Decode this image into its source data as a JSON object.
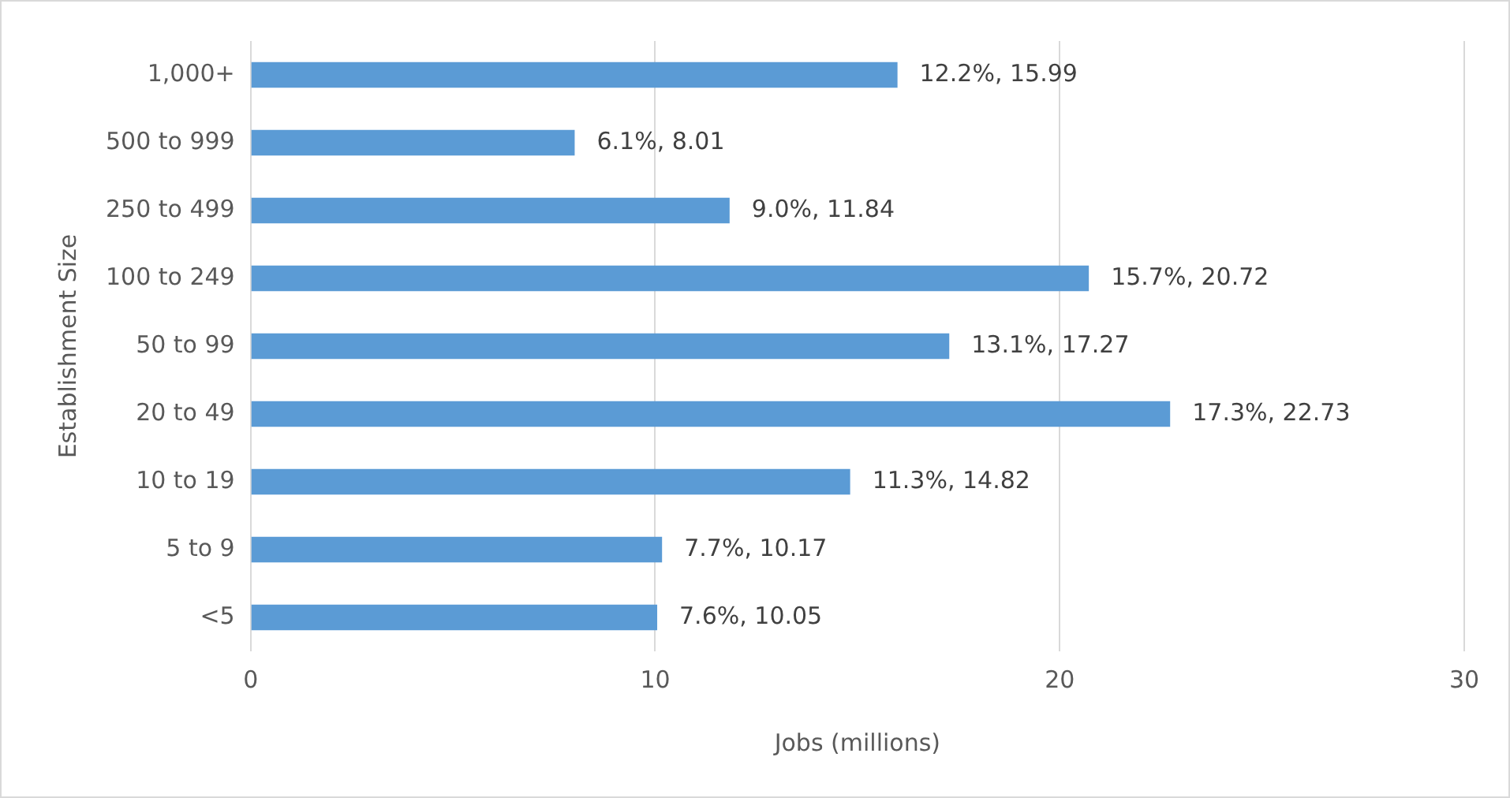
{
  "chart_data": {
    "type": "bar",
    "orientation": "horizontal",
    "xlabel": "Jobs (millions)",
    "ylabel": "Establishment Size",
    "categories": [
      "1,000+",
      "500 to 999",
      "250 to 499",
      "100 to 249",
      "50 to 99",
      "20 to 49",
      "10 to 19",
      "5 to 9",
      "<5"
    ],
    "values": [
      15.99,
      8.01,
      11.84,
      20.72,
      17.27,
      22.73,
      14.82,
      10.17,
      10.05
    ],
    "value_labels": [
      "12.2%, 15.99",
      "6.1%, 8.01",
      "9.0%, 11.84",
      "15.7%, 20.72",
      "13.1%, 17.27",
      "17.3%, 22.73",
      "11.3%, 14.82",
      "7.7%, 10.17",
      "7.6%, 10.05"
    ],
    "color": "#5b9bd5",
    "xlim": [
      0,
      30
    ],
    "xticks": [
      0,
      10,
      20,
      30
    ],
    "grid": "x",
    "legend": false
  }
}
